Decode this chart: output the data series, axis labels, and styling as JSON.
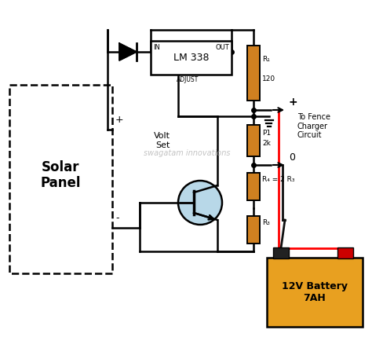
{
  "bg_color": "#ffffff",
  "lm338_label": "LM 338",
  "battery_color": "#E8A020",
  "resistor_color": "#D08020",
  "solar_panel_label": "Solar\nPanel",
  "battery_label": "12V Battery\n7AH",
  "watermark": "swagatam innovations"
}
